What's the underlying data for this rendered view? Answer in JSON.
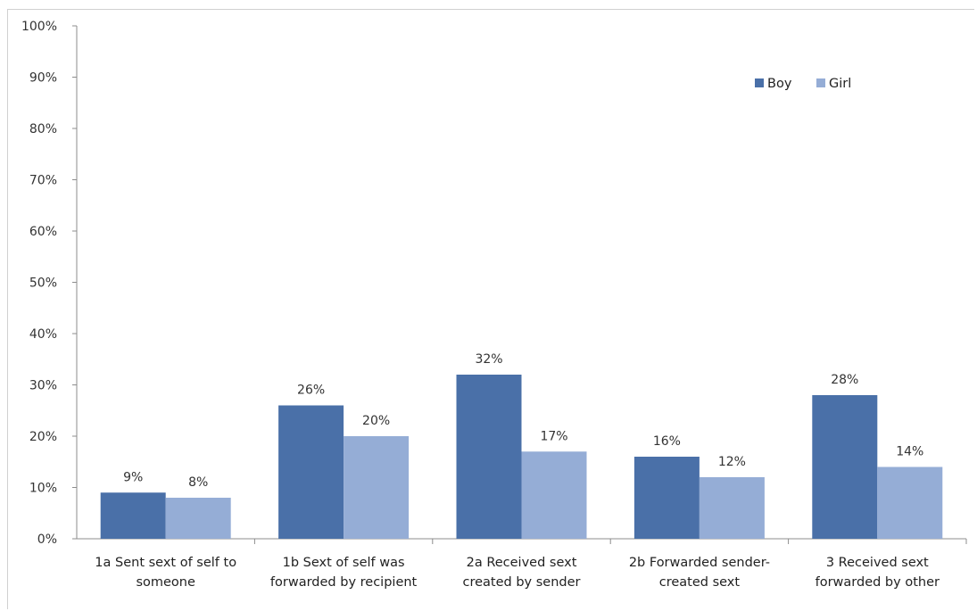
{
  "chart_data": {
    "type": "bar",
    "title": "",
    "xlabel": "",
    "ylabel": "",
    "categories": [
      [
        "1a Sent sext of self to",
        "someone"
      ],
      [
        "1b Sext of self was",
        "forwarded by recipient"
      ],
      [
        "2a  Received sext",
        "created by sender"
      ],
      [
        "2b  Forwarded sender-",
        "created sext"
      ],
      [
        "3 Received sext",
        "forwarded by other"
      ]
    ],
    "series": [
      {
        "name": "Boy",
        "color": "#4a70a8",
        "values": [
          9,
          26,
          32,
          16,
          28
        ],
        "labels": [
          "9%",
          "26%",
          "32%",
          "16%",
          "28%"
        ]
      },
      {
        "name": "Girl",
        "color": "#95add6",
        "values": [
          8,
          20,
          17,
          12,
          14
        ],
        "labels": [
          "8%",
          "20%",
          "17%",
          "12%",
          "14%"
        ]
      }
    ],
    "ylim": [
      0,
      100
    ],
    "yticks": [
      "0%",
      "10%",
      "20%",
      "30%",
      "40%",
      "50%",
      "60%",
      "70%",
      "80%",
      "90%",
      "100%"
    ],
    "grid": false,
    "legend": "top-right"
  }
}
